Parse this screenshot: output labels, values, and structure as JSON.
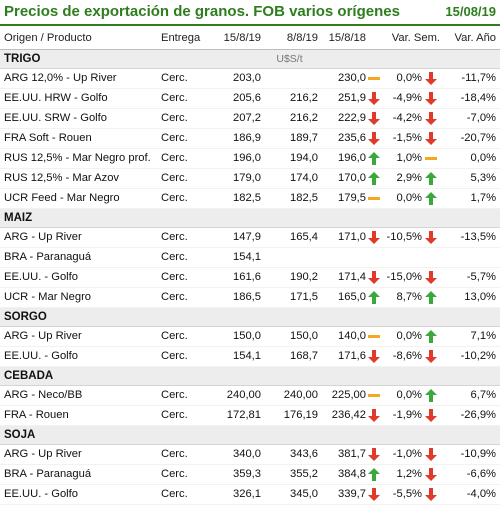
{
  "header": {
    "title": "Precios de exportación de granos. FOB varios orígenes",
    "date": "15/08/19"
  },
  "columns": {
    "origin": "Origen / Producto",
    "delivery": "Entrega",
    "c1": "15/8/19",
    "c2": "8/8/19",
    "c3": "15/8/18",
    "var_week": "Var. Sem.",
    "var_year": "Var. Año"
  },
  "unit": "U$S/t",
  "colors": {
    "up": "#3aa83a",
    "down": "#e03a2a",
    "flat": "#f5a623",
    "title": "#2e7d1e"
  },
  "sections": [
    {
      "name": "TRIGO",
      "show_unit": true,
      "rows": [
        {
          "product": "ARG 12,0% - Up River",
          "delivery": "Cerc.",
          "c1": "203,0",
          "c2": "",
          "c3": "230,0",
          "ind_c3": "flat",
          "var_week": "0,0%",
          "ind_week": "down",
          "var_year": "-11,7%"
        },
        {
          "product": "EE.UU. HRW - Golfo",
          "delivery": "Cerc.",
          "c1": "205,6",
          "c2": "216,2",
          "c3": "251,9",
          "ind_c3": "down",
          "var_week": "-4,9%",
          "ind_week": "down",
          "var_year": "-18,4%"
        },
        {
          "product": "EE.UU. SRW - Golfo",
          "delivery": "Cerc.",
          "c1": "207,2",
          "c2": "216,2",
          "c3": "222,9",
          "ind_c3": "down",
          "var_week": "-4,2%",
          "ind_week": "down",
          "var_year": "-7,0%"
        },
        {
          "product": "FRA Soft - Rouen",
          "delivery": "Cerc.",
          "c1": "186,9",
          "c2": "189,7",
          "c3": "235,6",
          "ind_c3": "down",
          "var_week": "-1,5%",
          "ind_week": "down",
          "var_year": "-20,7%"
        },
        {
          "product": "RUS 12,5% - Mar Negro prof.",
          "delivery": "Cerc.",
          "c1": "196,0",
          "c2": "194,0",
          "c3": "196,0",
          "ind_c3": "up",
          "var_week": "1,0%",
          "ind_week": "flat",
          "var_year": "0,0%"
        },
        {
          "product": "RUS 12,5% - Mar Azov",
          "delivery": "Cerc.",
          "c1": "179,0",
          "c2": "174,0",
          "c3": "170,0",
          "ind_c3": "up",
          "var_week": "2,9%",
          "ind_week": "up",
          "var_year": "5,3%"
        },
        {
          "product": "UCR Feed - Mar Negro",
          "delivery": "Cerc.",
          "c1": "182,5",
          "c2": "182,5",
          "c3": "179,5",
          "ind_c3": "flat",
          "var_week": "0,0%",
          "ind_week": "up",
          "var_year": "1,7%"
        }
      ]
    },
    {
      "name": "MAIZ",
      "rows": [
        {
          "product": "ARG - Up River",
          "delivery": "Cerc.",
          "c1": "147,9",
          "c2": "165,4",
          "c3": "171,0",
          "ind_c3": "down",
          "var_week": "-10,5%",
          "ind_week": "down",
          "var_year": "-13,5%"
        },
        {
          "product": "BRA - Paranaguá",
          "delivery": "Cerc.",
          "c1": "154,1",
          "c2": "",
          "c3": "",
          "ind_c3": "",
          "var_week": "",
          "ind_week": "",
          "var_year": ""
        },
        {
          "product": "EE.UU. - Golfo",
          "delivery": "Cerc.",
          "c1": "161,6",
          "c2": "190,2",
          "c3": "171,4",
          "ind_c3": "down",
          "var_week": "-15,0%",
          "ind_week": "down",
          "var_year": "-5,7%"
        },
        {
          "product": "UCR - Mar Negro",
          "delivery": "Cerc.",
          "c1": "186,5",
          "c2": "171,5",
          "c3": "165,0",
          "ind_c3": "up",
          "var_week": "8,7%",
          "ind_week": "up",
          "var_year": "13,0%"
        }
      ]
    },
    {
      "name": "SORGO",
      "rows": [
        {
          "product": "ARG - Up River",
          "delivery": "Cerc.",
          "c1": "150,0",
          "c2": "150,0",
          "c3": "140,0",
          "ind_c3": "flat",
          "var_week": "0,0%",
          "ind_week": "up",
          "var_year": "7,1%"
        },
        {
          "product": "EE.UU. - Golfo",
          "delivery": "Cerc.",
          "c1": "154,1",
          "c2": "168,7",
          "c3": "171,6",
          "ind_c3": "down",
          "var_week": "-8,6%",
          "ind_week": "down",
          "var_year": "-10,2%"
        }
      ]
    },
    {
      "name": "CEBADA",
      "rows": [
        {
          "product": "ARG - Neco/BB",
          "delivery": "Cerc.",
          "c1": "240,00",
          "c2": "240,00",
          "c3": "225,00",
          "ind_c3": "flat",
          "var_week": "0,0%",
          "ind_week": "up",
          "var_year": "6,7%"
        },
        {
          "product": "FRA - Rouen",
          "delivery": "Cerc.",
          "c1": "172,81",
          "c2": "176,19",
          "c3": "236,42",
          "ind_c3": "down",
          "var_week": "-1,9%",
          "ind_week": "down",
          "var_year": "-26,9%"
        }
      ]
    },
    {
      "name": "SOJA",
      "rows": [
        {
          "product": "ARG - Up River",
          "delivery": "Cerc.",
          "c1": "340,0",
          "c2": "343,6",
          "c3": "381,7",
          "ind_c3": "down",
          "var_week": "-1,0%",
          "ind_week": "down",
          "var_year": "-10,9%"
        },
        {
          "product": "BRA - Paranaguá",
          "delivery": "Cerc.",
          "c1": "359,3",
          "c2": "355,2",
          "c3": "384,8",
          "ind_c3": "up",
          "var_week": "1,2%",
          "ind_week": "down",
          "var_year": "-6,6%"
        },
        {
          "product": "EE.UU. - Golfo",
          "delivery": "Cerc.",
          "c1": "326,1",
          "c2": "345,0",
          "c3": "339,7",
          "ind_c3": "down",
          "var_week": "-5,5%",
          "ind_week": "down",
          "var_year": "-4,0%"
        }
      ]
    }
  ]
}
